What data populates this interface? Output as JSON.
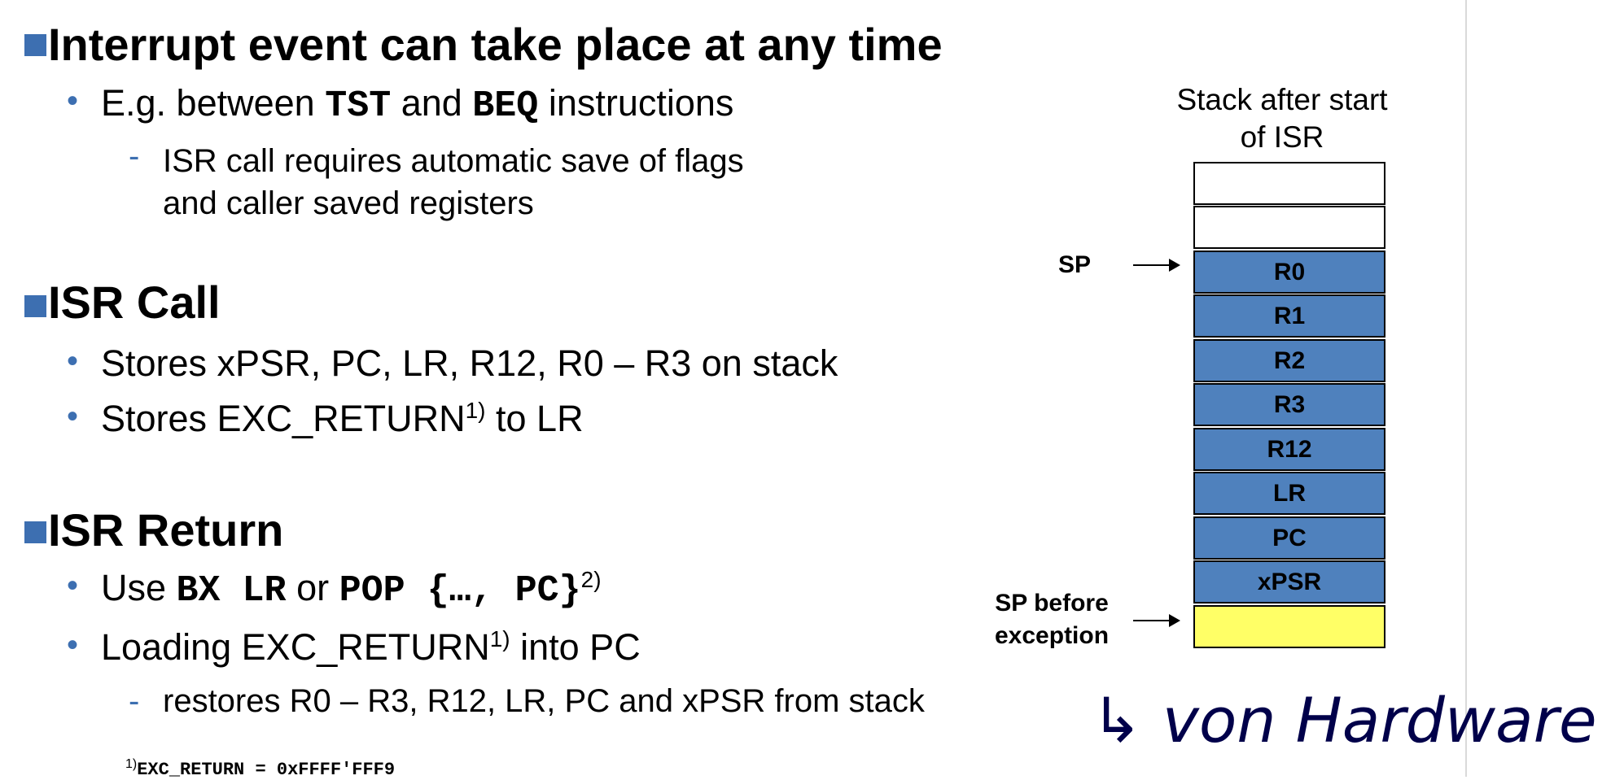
{
  "sections": [
    {
      "heading": "Interrupt event can take place at any time",
      "bullet": {
        "pre": "E.g. between ",
        "code1": "TST",
        "mid": " and ",
        "code2": "BEQ",
        "post": " instructions"
      },
      "sub": {
        "line1": "ISR call requires automatic save of flags",
        "line2": "and caller saved registers"
      }
    },
    {
      "heading": "ISR Call",
      "bullets": [
        {
          "text": "Stores xPSR, PC, LR, R12, R0 – R3 on stack"
        },
        {
          "pre": "Stores EXC_RETURN",
          "sup": "1)",
          "post": " to LR"
        }
      ]
    },
    {
      "heading": "ISR Return",
      "bullet1": {
        "pre": "Use ",
        "code1": "BX LR",
        "mid": " or ",
        "code2": "POP {…, PC}",
        "sup": "2)"
      },
      "bullet2": {
        "pre": "Loading EXC_RETURN",
        "sup": "1)",
        "post": " into PC"
      },
      "sub": "restores R0 – R3, R12,  LR, PC and xPSR from stack"
    }
  ],
  "footnote": {
    "sup": "1)",
    "text": "EXC_RETURN = 0xFFFF'FFF9"
  },
  "stack": {
    "title_line1": "Stack after start",
    "title_line2": "of ISR",
    "registers": [
      "R0",
      "R1",
      "R2",
      "R3",
      "R12",
      "LR",
      "PC",
      "xPSR"
    ],
    "sp_label": "SP",
    "sp_before_line1": "SP before",
    "sp_before_line2": "exception"
  },
  "handwriting": "↳ von Hardware",
  "colors": {
    "bullet_square": "#3d6fb1",
    "register_cell": "#4f81bd",
    "highlight_cell": "#ffff66"
  }
}
